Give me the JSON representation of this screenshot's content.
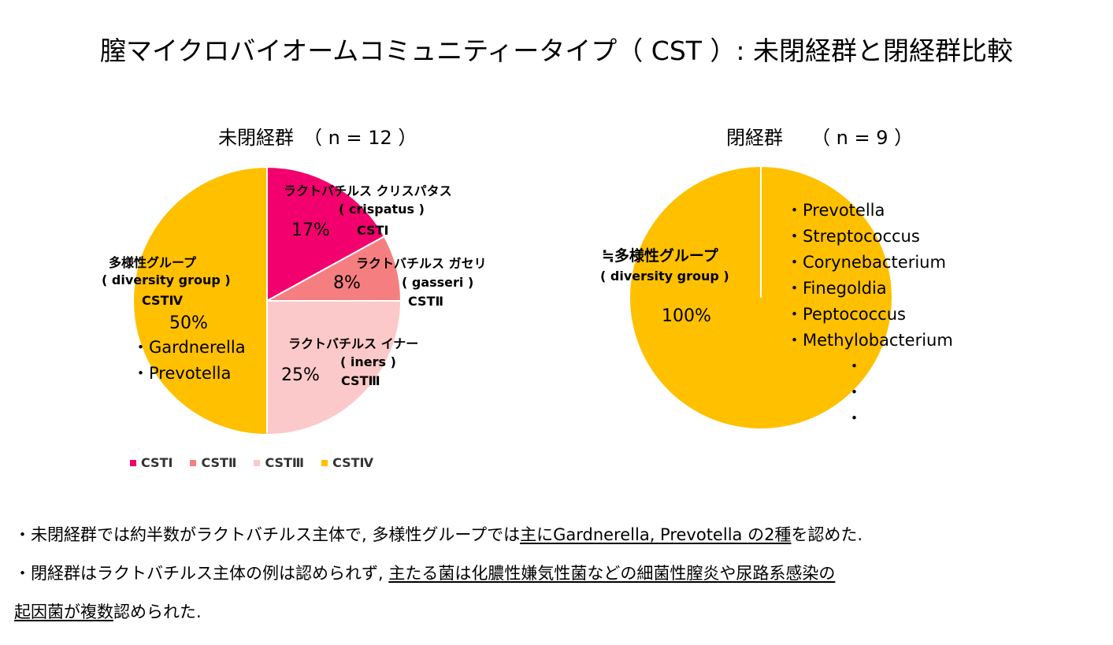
{
  "title": "膣マイクロバイオームコミュニティータイプ（ CST ）: 未閉経群と閉経群比較",
  "chart_data": [
    {
      "type": "pie",
      "title": "未閉経群　（ n = 12 ）",
      "slices": [
        {
          "name": "CSTⅠ",
          "label": "ラクトバチルス クリスパタス",
          "sublabel": "( crispatus )",
          "cst": "CSTⅠ",
          "value": 17,
          "value_label": "17%",
          "color": "#f2006d"
        },
        {
          "name": "CSTⅡ",
          "label": "ラクトバチルス ガセリ",
          "sublabel": "( gasseri )",
          "cst": "CSTⅡ",
          "value": 8,
          "value_label": "8%",
          "color": "#f57f80"
        },
        {
          "name": "CSTⅢ",
          "label": "ラクトバチルス イナー",
          "sublabel": "( iners )",
          "cst": "CSTⅢ",
          "value": 25,
          "value_label": "25%",
          "color": "#fbc9c9"
        },
        {
          "name": "CSTⅣ",
          "label": "多様性グループ",
          "sublabel": "( diversity group )",
          "cst": "CSTⅣ",
          "value": 50,
          "value_label": "50%",
          "color": "#ffc000",
          "genera": [
            "・Gardnerella",
            "・Prevotella"
          ]
        }
      ],
      "legend": [
        "CSTⅠ",
        "CSTⅡ",
        "CSTⅢ",
        "CSTⅣ"
      ],
      "legend_position": "bottom"
    },
    {
      "type": "pie",
      "title": "閉経群　　（ n = 9 ）",
      "slices": [
        {
          "name": "CSTⅣ",
          "label": "≒多様性グループ",
          "sublabel": "( diversity group )",
          "value": 100,
          "value_label": "100%",
          "color": "#ffc000"
        }
      ],
      "genera": [
        "・Prevotella",
        "・Streptococcus",
        "・Corynebacterium",
        "・Finegoldia",
        "・Peptococcus",
        "・Methylobacterium",
        "・",
        "・",
        "・"
      ]
    }
  ],
  "notes": {
    "line1_a": "・未閉経群では約半数がラクトバチルス主体で, 多様性グループでは",
    "line1_u": "主にGardnerella, Prevotella の2種",
    "line1_b": "を認めた.",
    "line2_a": "・閉経群はラクトバチルス主体の例は認められず, ",
    "line2_u": "主たる菌は化膿性嫌気性菌などの細菌性膣炎や尿路系感染の",
    "line3_u": " 起因菌が複数",
    "line3_b": "認められた."
  }
}
